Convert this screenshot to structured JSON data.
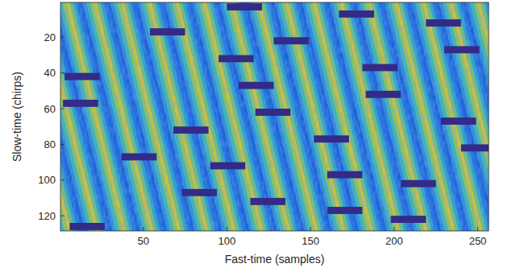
{
  "chart_data": {
    "type": "heatmap",
    "xlabel": "Fast-time (samples)",
    "ylabel": "Slow-time (chirps)",
    "xlim": [
      0.5,
      256.5
    ],
    "ylim": [
      0.5,
      128.5
    ],
    "xticks": [
      50,
      100,
      150,
      200,
      250
    ],
    "yticks": [
      20,
      40,
      60,
      80,
      100,
      120
    ],
    "color": "#352a87",
    "masks": [
      {
        "x0": 100,
        "x1": 121,
        "y0": 1,
        "y1": 5
      },
      {
        "x0": 167,
        "x1": 188,
        "y0": 5,
        "y1": 9
      },
      {
        "x0": 219,
        "x1": 240,
        "y0": 10,
        "y1": 14
      },
      {
        "x0": 54,
        "x1": 75,
        "y0": 15,
        "y1": 19
      },
      {
        "x0": 128,
        "x1": 149,
        "y0": 20,
        "y1": 24
      },
      {
        "x0": 230,
        "x1": 251,
        "y0": 25,
        "y1": 29
      },
      {
        "x0": 95,
        "x1": 116,
        "y0": 30,
        "y1": 34
      },
      {
        "x0": 181,
        "x1": 202,
        "y0": 35,
        "y1": 39
      },
      {
        "x0": 3,
        "x1": 24,
        "y0": 40,
        "y1": 44
      },
      {
        "x0": 107,
        "x1": 128,
        "y0": 45,
        "y1": 49
      },
      {
        "x0": 183,
        "x1": 204,
        "y0": 50,
        "y1": 54
      },
      {
        "x0": 2,
        "x1": 23,
        "y0": 55,
        "y1": 59
      },
      {
        "x0": 117,
        "x1": 138,
        "y0": 60,
        "y1": 64
      },
      {
        "x0": 228,
        "x1": 249,
        "y0": 65,
        "y1": 69
      },
      {
        "x0": 68,
        "x1": 89,
        "y0": 70,
        "y1": 74
      },
      {
        "x0": 152,
        "x1": 173,
        "y0": 75,
        "y1": 79
      },
      {
        "x0": 240,
        "x1": 261,
        "y0": 80,
        "y1": 84
      },
      {
        "x0": 37,
        "x1": 58,
        "y0": 85,
        "y1": 89
      },
      {
        "x0": 90,
        "x1": 111,
        "y0": 90,
        "y1": 94
      },
      {
        "x0": 160,
        "x1": 181,
        "y0": 95,
        "y1": 99
      },
      {
        "x0": 204,
        "x1": 225,
        "y0": 100,
        "y1": 104
      },
      {
        "x0": 73,
        "x1": 94,
        "y0": 105,
        "y1": 109
      },
      {
        "x0": 114,
        "x1": 135,
        "y0": 110,
        "y1": 114
      },
      {
        "x0": 160,
        "x1": 181,
        "y0": 115,
        "y1": 119
      },
      {
        "x0": 198,
        "x1": 219,
        "y0": 120,
        "y1": 124
      },
      {
        "x0": 6,
        "x1": 27,
        "y0": 124,
        "y1": 128
      }
    ]
  }
}
